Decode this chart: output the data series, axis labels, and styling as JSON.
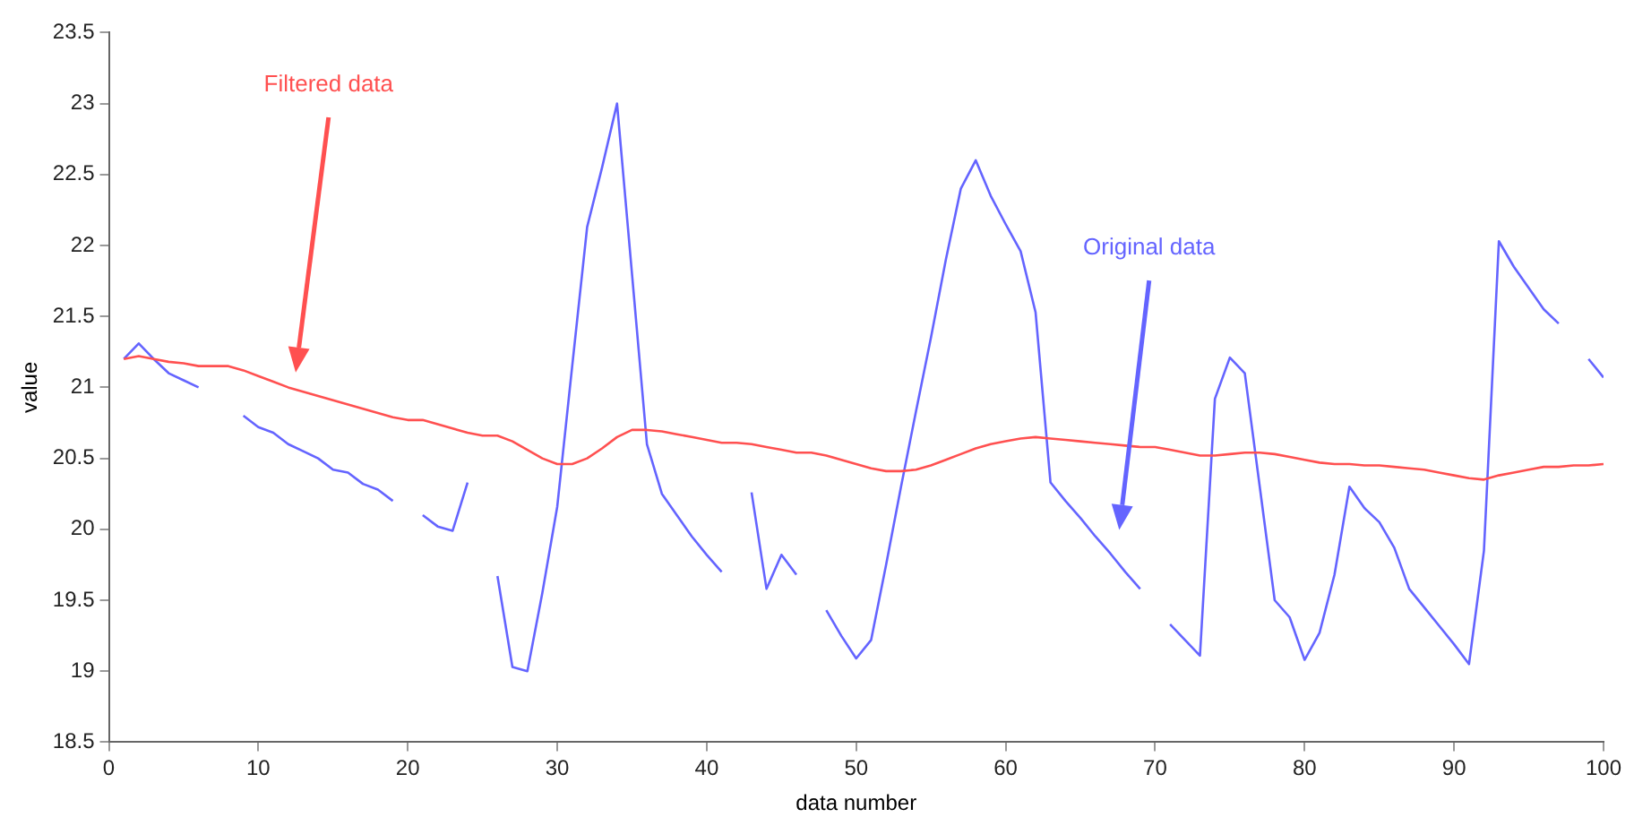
{
  "chart_data": {
    "type": "line",
    "xlabel": "data number",
    "ylabel": "value",
    "x": [
      1,
      2,
      3,
      4,
      5,
      6,
      7,
      8,
      9,
      10,
      11,
      12,
      13,
      14,
      15,
      16,
      17,
      18,
      19,
      20,
      21,
      22,
      23,
      24,
      25,
      26,
      27,
      28,
      29,
      30,
      31,
      32,
      33,
      34,
      35,
      36,
      37,
      38,
      39,
      40,
      41,
      42,
      43,
      44,
      45,
      46,
      47,
      48,
      49,
      50,
      51,
      52,
      53,
      54,
      55,
      56,
      57,
      58,
      59,
      60,
      61,
      62,
      63,
      64,
      65,
      66,
      67,
      68,
      69,
      70,
      71,
      72,
      73,
      74,
      75,
      76,
      77,
      78,
      79,
      80,
      81,
      82,
      83,
      84,
      85,
      86,
      87,
      88,
      89,
      90,
      91,
      92,
      93,
      94,
      95,
      96,
      97,
      98,
      99,
      100
    ],
    "series": [
      {
        "color": "#ff5050",
        "values": [
          21.2,
          21.22,
          21.2,
          21.18,
          21.17,
          21.15,
          21.15,
          21.15,
          21.12,
          21.08,
          21.04,
          21.0,
          20.97,
          20.94,
          20.91,
          20.88,
          20.85,
          20.82,
          20.79,
          20.77,
          20.77,
          20.74,
          20.71,
          20.68,
          20.66,
          20.66,
          20.62,
          20.56,
          20.5,
          20.46,
          20.46,
          20.5,
          20.57,
          20.65,
          20.7,
          20.7,
          20.69,
          20.67,
          20.65,
          20.63,
          20.61,
          20.61,
          20.6,
          20.58,
          20.56,
          20.54,
          20.54,
          20.52,
          20.49,
          20.46,
          20.43,
          20.41,
          20.41,
          20.42,
          20.45,
          20.49,
          20.53,
          20.57,
          20.6,
          20.62,
          20.64,
          20.65,
          20.64,
          20.63,
          20.62,
          20.61,
          20.6,
          20.59,
          20.58,
          20.58,
          20.56,
          20.54,
          20.52,
          20.52,
          20.53,
          20.54,
          20.54,
          20.53,
          20.51,
          20.49,
          20.47,
          20.46,
          20.46,
          20.45,
          20.45,
          20.44,
          20.43,
          20.42,
          20.4,
          20.38,
          20.36,
          20.35,
          20.38,
          20.4,
          20.42,
          20.44,
          20.44,
          20.45,
          20.45,
          20.46
        ]
      },
      {
        "color": "#6464ff",
        "values": [
          21.2,
          21.31,
          21.2,
          21.1,
          21.05,
          21.0,
          null,
          null,
          20.8,
          20.72,
          20.68,
          20.6,
          20.55,
          20.5,
          20.42,
          20.4,
          20.32,
          20.28,
          20.2,
          null,
          20.1,
          20.02,
          19.99,
          20.33,
          null,
          19.67,
          19.03,
          19.0,
          19.55,
          20.16,
          21.15,
          22.13,
          22.55,
          23.0,
          21.8,
          20.6,
          20.25,
          20.1,
          19.95,
          19.82,
          19.7,
          null,
          20.26,
          19.58,
          19.82,
          19.68,
          null,
          19.43,
          19.25,
          19.09,
          19.22,
          19.75,
          20.3,
          20.83,
          21.35,
          21.9,
          22.4,
          22.6,
          22.35,
          22.15,
          21.96,
          21.53,
          20.33,
          20.2,
          20.08,
          19.95,
          19.83,
          19.7,
          19.58,
          null,
          19.33,
          19.22,
          19.11,
          20.92,
          21.21,
          21.1,
          20.3,
          19.5,
          19.38,
          19.08,
          19.27,
          19.68,
          20.3,
          20.15,
          20.05,
          19.87,
          19.58,
          19.45,
          19.32,
          19.19,
          19.05,
          19.85,
          22.03,
          21.85,
          21.7,
          21.55,
          21.45,
          null,
          21.2,
          21.07
        ]
      }
    ],
    "annotations": [
      "Filtered data",
      "Original data"
    ],
    "xlim": [
      0,
      100
    ],
    "xticks": [
      0,
      10,
      20,
      30,
      40,
      50,
      60,
      70,
      80,
      90,
      100
    ],
    "ylim": [
      18.5,
      23.5
    ],
    "yticks": [
      18.5,
      19,
      19.5,
      20,
      20.5,
      21,
      21.5,
      22,
      22.5,
      23,
      23.5
    ],
    "grid": false,
    "legend": false,
    "marker": "none",
    "line_style": "solid"
  }
}
